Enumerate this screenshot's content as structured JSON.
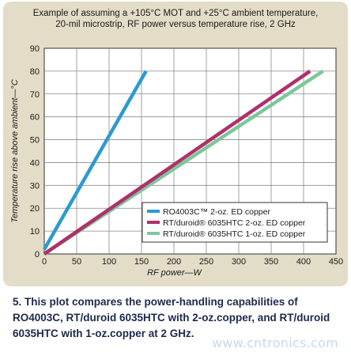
{
  "chart_data": {
    "type": "line",
    "title_lines": [
      "Example of assuming a +105°C MOT and +25°C ambient temperature,",
      "20-mil microstrip, RF power versus temperature rise, 2 GHz"
    ],
    "xlabel": "RF power—W",
    "ylabel": "Temperature rise above ambient—°C",
    "xlim": [
      0,
      450
    ],
    "ylim": [
      0,
      90
    ],
    "x_ticks": [
      0,
      50,
      100,
      150,
      200,
      250,
      300,
      350,
      400,
      450
    ],
    "y_ticks": [
      0,
      10,
      20,
      30,
      40,
      50,
      60,
      70,
      80,
      90
    ],
    "grid": true,
    "legend_position": "bottom-right",
    "series": [
      {
        "name": "RO4003C™ 2-oz. ED copper",
        "color": "#2e9ad0",
        "x": [
          0,
          157
        ],
        "y": [
          2,
          80
        ]
      },
      {
        "name": "RT/duroid® 6035HTC 2-oz. ED copper",
        "color": "#b0306a",
        "x": [
          0,
          410
        ],
        "y": [
          0,
          80
        ]
      },
      {
        "name": "RT/duroid® 6035HTC 1-oz. ED copper",
        "color": "#7cc79a",
        "x": [
          0,
          430
        ],
        "y": [
          0,
          80
        ]
      }
    ]
  },
  "caption": "5. This plot compares the power-handling capabilities of RO4003C, RT/duroid 6035HTC with 2-oz.copper, and RT/duroid 6035HTC with 1-oz.copper at 2 GHz.",
  "watermark": "www.cntronics.com"
}
